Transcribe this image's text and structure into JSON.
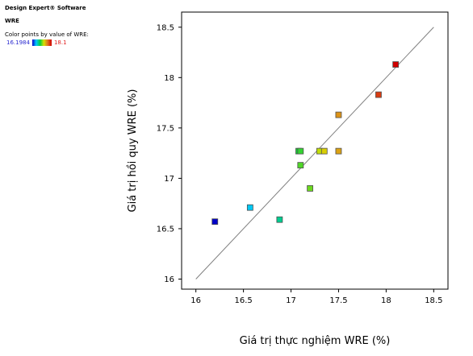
{
  "sidebar": {
    "software": "Design Expert® Software",
    "variable": "WRE",
    "color_note": "Color points by value of WRE:",
    "legend_min": "16.1984",
    "legend_max": "18.1"
  },
  "chart_data": {
    "type": "scatter",
    "xlabel": "Giá trị thực nghiệm WRE (%)",
    "ylabel": "Giá trị hồi quy WRE (%)",
    "xlim": [
      15.85,
      18.65
    ],
    "ylim": [
      15.9,
      18.65
    ],
    "xticks": [
      "16",
      "16.5",
      "17",
      "17.5",
      "18",
      "18.5"
    ],
    "yticks": [
      "16",
      "16.5",
      "17",
      "17.5",
      "18",
      "18.5"
    ],
    "reference_line": [
      [
        16,
        16
      ],
      [
        18.5,
        18.5
      ]
    ],
    "color_scale": [
      "#0000c8",
      "#00c8ff",
      "#00d040",
      "#d8e000",
      "#e07020",
      "#d00000"
    ],
    "color_range": [
      16.1984,
      18.1
    ],
    "points": [
      {
        "x": 16.2,
        "y": 16.57,
        "value": 16.1984
      },
      {
        "x": 16.57,
        "y": 16.71,
        "value": 16.6
      },
      {
        "x": 16.88,
        "y": 16.59,
        "value": 16.8
      },
      {
        "x": 17.08,
        "y": 17.27,
        "value": 17.0
      },
      {
        "x": 17.1,
        "y": 17.27,
        "value": 17.05
      },
      {
        "x": 17.1,
        "y": 17.13,
        "value": 17.1
      },
      {
        "x": 17.2,
        "y": 16.9,
        "value": 17.15
      },
      {
        "x": 17.3,
        "y": 17.27,
        "value": 17.3
      },
      {
        "x": 17.35,
        "y": 17.27,
        "value": 17.4
      },
      {
        "x": 17.5,
        "y": 17.27,
        "value": 17.55
      },
      {
        "x": 17.5,
        "y": 17.63,
        "value": 17.6
      },
      {
        "x": 17.92,
        "y": 17.83,
        "value": 17.9
      },
      {
        "x": 18.1,
        "y": 18.13,
        "value": 18.1
      }
    ]
  }
}
